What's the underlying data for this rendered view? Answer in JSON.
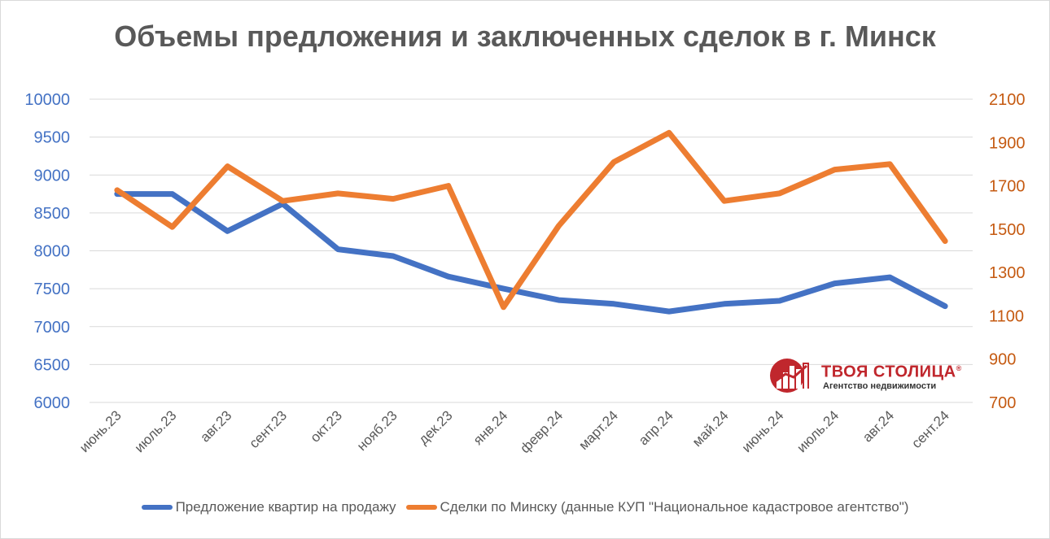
{
  "title": "Объемы предложения и заключенных сделок в г. Минск",
  "logo": {
    "name": "ТВОЯ СТОЛИЦА",
    "registered_mark": "®",
    "subtitle": "Агентство недвижимости",
    "color": "#c0272d"
  },
  "chart_data": {
    "type": "line",
    "categories": [
      "июнь.23",
      "июль.23",
      "авг.23",
      "сент.23",
      "окт.23",
      "нояб.23",
      "дек.23",
      "янв.24",
      "февр.24",
      "март.24",
      "апр.24",
      "май.24",
      "июнь.24",
      "июль.24",
      "авг.24",
      "сент.24"
    ],
    "y_left": {
      "min": 6000,
      "max": 10000,
      "step": 500,
      "color": "#4472c4"
    },
    "y_right": {
      "min": 700,
      "max": 2100,
      "step": 200,
      "color": "#c55a11"
    },
    "grid": true,
    "legend_position": "bottom",
    "series": [
      {
        "name": "Предложение квартир на продажу",
        "axis": "left",
        "color": "#4472c4",
        "values": [
          8750,
          8750,
          8260,
          8620,
          8020,
          7930,
          7660,
          7500,
          7350,
          7300,
          7200,
          7300,
          7340,
          7570,
          7650,
          7270
        ]
      },
      {
        "name": "Сделки по Минску (данные КУП \"Национальное кадастровое агентство\")",
        "axis": "right",
        "color": "#ed7d31",
        "values": [
          1680,
          1510,
          1790,
          1630,
          1665,
          1640,
          1700,
          1140,
          1515,
          1810,
          1945,
          1630,
          1665,
          1775,
          1800,
          1445
        ]
      }
    ]
  }
}
